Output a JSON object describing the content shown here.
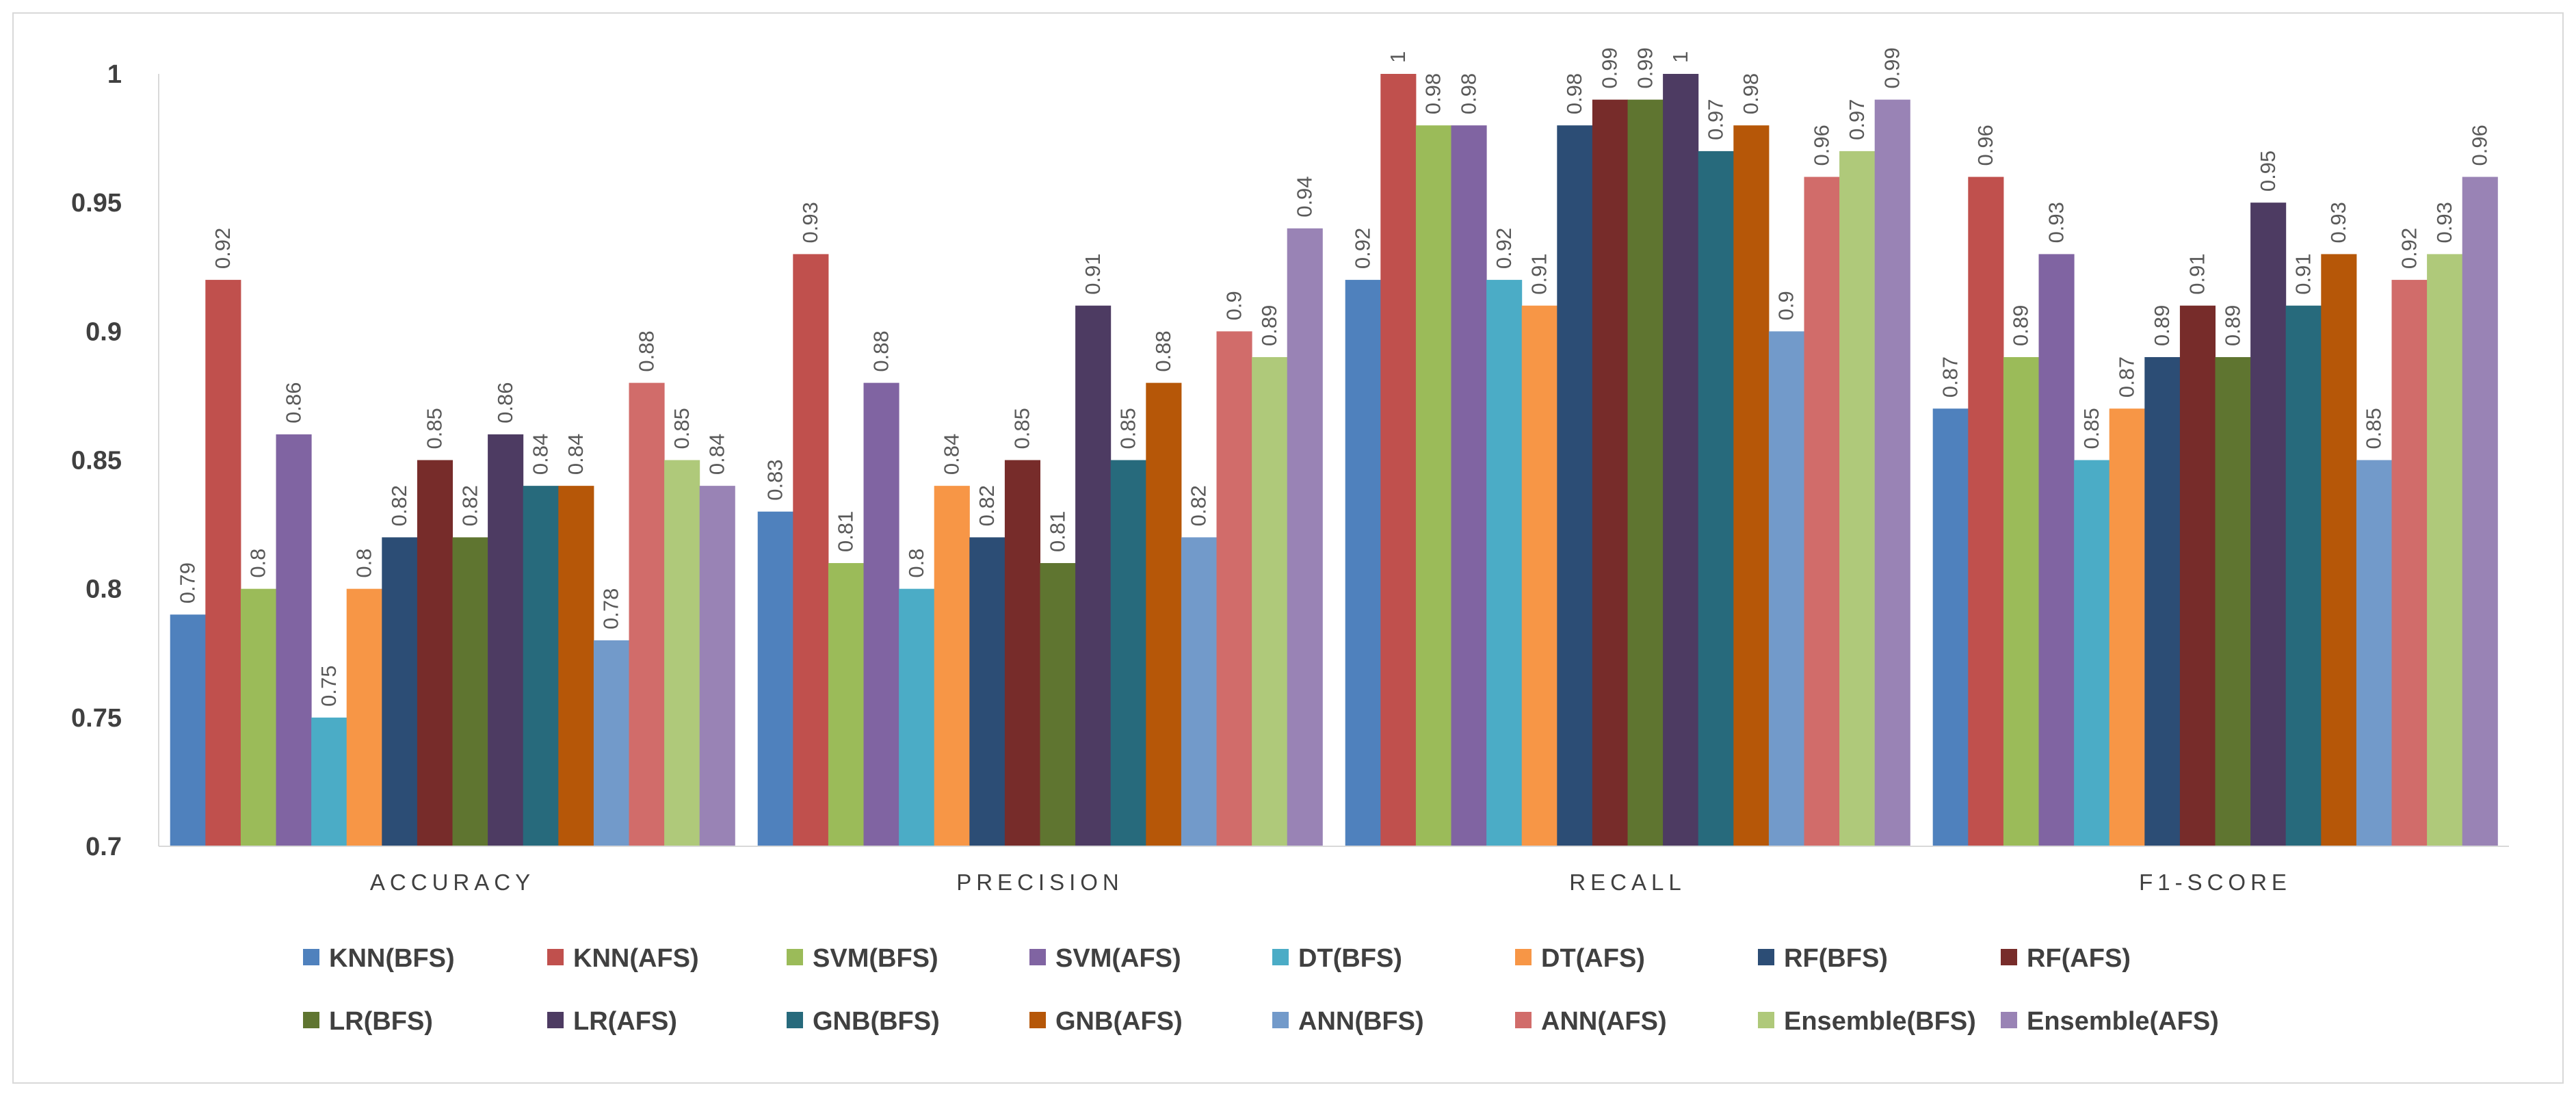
{
  "chart_data": {
    "type": "bar",
    "title": "",
    "xlabel": "",
    "ylabel": "",
    "ylim": [
      0.7,
      1
    ],
    "yticks": [
      "0.7",
      "0.75",
      "0.8",
      "0.85",
      "0.9",
      "0.95",
      "1"
    ],
    "grid": false,
    "legend_position": "bottom",
    "categories": [
      "ACCURACY",
      "PRECISION",
      "RECALL",
      "F1-SCORE"
    ],
    "series": [
      {
        "name": "KNN(BFS)",
        "color": "#4f81bd",
        "values": [
          0.79,
          0.83,
          0.92,
          0.87
        ],
        "labels": [
          "0.79",
          "0.83",
          "0.92",
          "0.87"
        ]
      },
      {
        "name": "KNN(AFS)",
        "color": "#c0504d",
        "values": [
          0.92,
          0.93,
          1,
          0.96
        ],
        "labels": [
          "0.92",
          "0.93",
          "1",
          "0.96"
        ]
      },
      {
        "name": "SVM(BFS)",
        "color": "#9bbb59",
        "values": [
          0.8,
          0.81,
          0.98,
          0.89
        ],
        "labels": [
          "0.8",
          "0.81",
          "0.98",
          "0.89"
        ]
      },
      {
        "name": "SVM(AFS)",
        "color": "#8064a2",
        "values": [
          0.86,
          0.88,
          0.98,
          0.93
        ],
        "labels": [
          "0.86",
          "0.88",
          "0.98",
          "0.93"
        ]
      },
      {
        "name": "DT(BFS)",
        "color": "#4bacc6",
        "values": [
          0.75,
          0.8,
          0.92,
          0.85
        ],
        "labels": [
          "0.75",
          "0.8",
          "0.92",
          "0.85"
        ]
      },
      {
        "name": "DT(AFS)",
        "color": "#f79646",
        "values": [
          0.8,
          0.84,
          0.91,
          0.87
        ],
        "labels": [
          "0.8",
          "0.84",
          "0.91",
          "0.87"
        ]
      },
      {
        "name": "RF(BFS)",
        "color": "#2c4d75",
        "values": [
          0.82,
          0.82,
          0.98,
          0.89
        ],
        "labels": [
          "0.82",
          "0.82",
          "0.98",
          "0.89"
        ]
      },
      {
        "name": "RF(AFS)",
        "color": "#772c2a",
        "values": [
          0.85,
          0.85,
          0.99,
          0.91
        ],
        "labels": [
          "0.85",
          "0.85",
          "0.99",
          "0.91"
        ]
      },
      {
        "name": "LR(BFS)",
        "color": "#5f7530",
        "values": [
          0.82,
          0.81,
          0.99,
          0.89
        ],
        "labels": [
          "0.82",
          "0.81",
          "0.99",
          "0.89"
        ]
      },
      {
        "name": "LR(AFS)",
        "color": "#4d3b62",
        "values": [
          0.86,
          0.91,
          1,
          0.95
        ],
        "labels": [
          "0.86",
          "0.91",
          "1",
          "0.95"
        ]
      },
      {
        "name": "GNB(BFS)",
        "color": "#276a7c",
        "values": [
          0.84,
          0.85,
          0.97,
          0.91
        ],
        "labels": [
          "0.84",
          "0.85",
          "0.97",
          "0.91"
        ]
      },
      {
        "name": "GNB(AFS)",
        "color": "#b65708",
        "values": [
          0.84,
          0.88,
          0.98,
          0.93
        ],
        "labels": [
          "0.84",
          "0.88",
          "0.98",
          "0.93"
        ]
      },
      {
        "name": "ANN(BFS)",
        "color": "#729aca",
        "values": [
          0.78,
          0.82,
          0.9,
          0.85
        ],
        "labels": [
          "0.78",
          "0.82",
          "0.9",
          "0.85"
        ]
      },
      {
        "name": "ANN(AFS)",
        "color": "#d16c6a",
        "values": [
          0.88,
          0.9,
          0.96,
          0.92
        ],
        "labels": [
          "0.88",
          "0.9",
          "0.96",
          "0.92"
        ]
      },
      {
        "name": "Ensemble(BFS)",
        "color": "#afc97a",
        "values": [
          0.85,
          0.89,
          0.97,
          0.93
        ],
        "labels": [
          "0.85",
          "0.89",
          "0.97",
          "0.93"
        ]
      },
      {
        "name": "Ensemble(AFS)",
        "color": "#9983b5",
        "values": [
          0.84,
          0.94,
          0.99,
          0.96
        ],
        "labels": [
          "0.84",
          "0.94",
          "0.99",
          "0.96"
        ]
      }
    ]
  }
}
